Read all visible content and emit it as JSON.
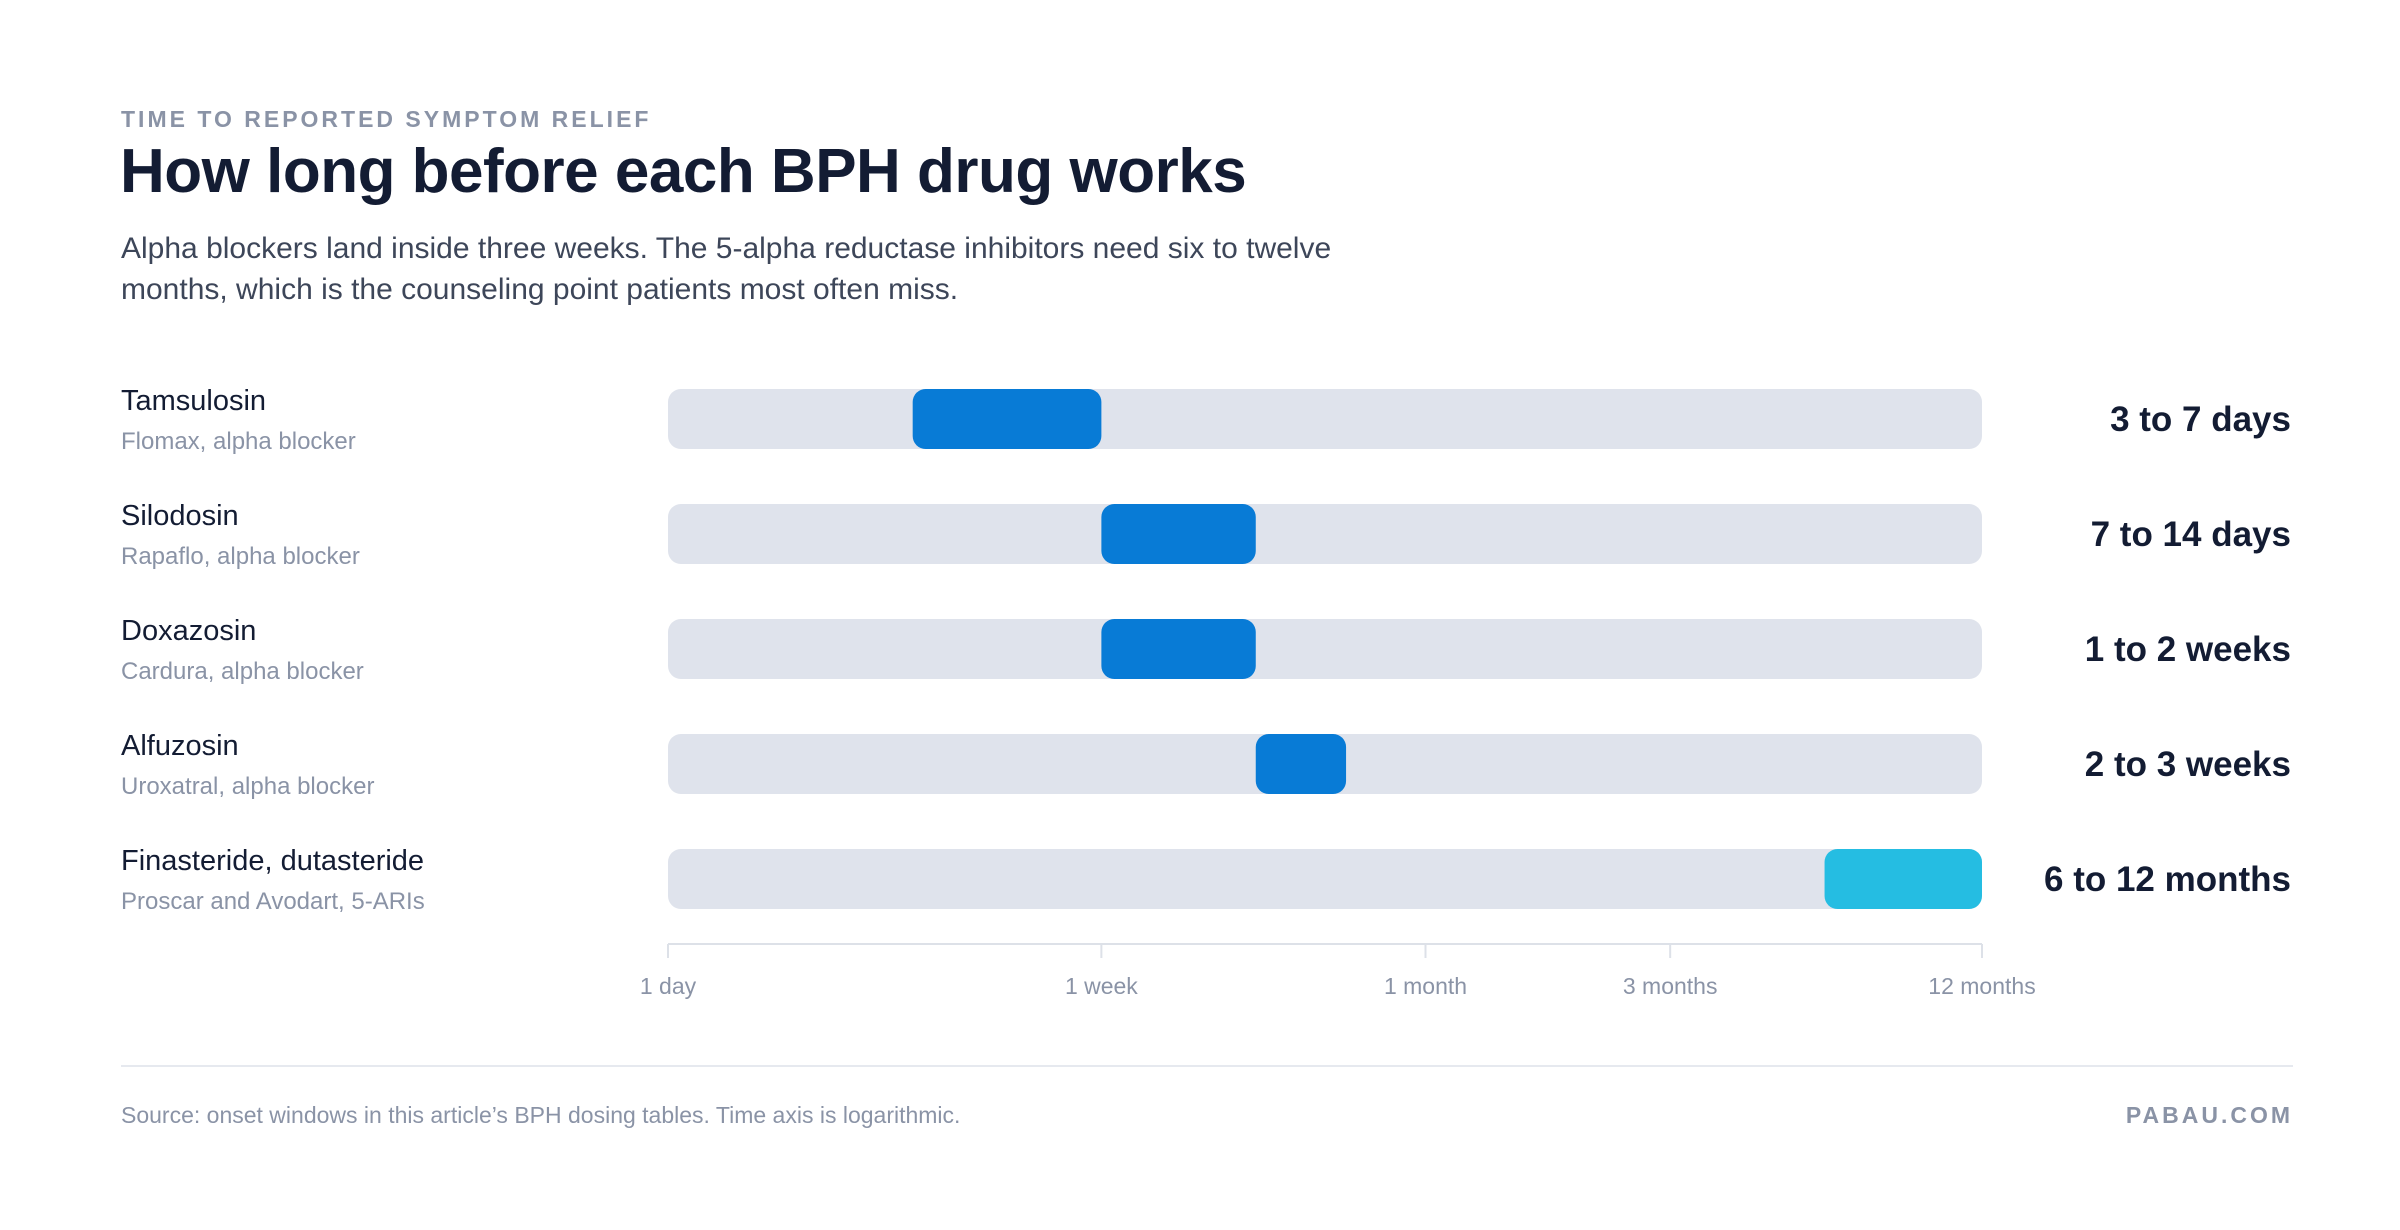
{
  "header": {
    "kicker": "TIME TO REPORTED SYMPTOM RELIEF",
    "title": "How long before each BPH drug works",
    "subtitle": "Alpha blockers land inside three weeks. The 5-alpha reductase inhibitors need six to twelve months, which is the counseling point patients most often miss."
  },
  "footer": {
    "source": "Source: onset windows in this article’s BPH dosing tables. Time axis is logarithmic.",
    "brand": "PABAU.COM"
  },
  "colors": {
    "track": "#dfe3ec",
    "alpha_blocker": "#087bd6",
    "five_ari": "#25bde2",
    "axis": "#dde1e8",
    "tick_label": "#8a93a6",
    "name": "#131c33",
    "detail": "#8a93a6"
  },
  "chart_data": {
    "type": "range-bar",
    "x_unit": "days",
    "x_scale": "log",
    "xlim": [
      1,
      365
    ],
    "x_ticks": [
      {
        "value": 1,
        "label": "1 day"
      },
      {
        "value": 7,
        "label": "1 week"
      },
      {
        "value": 30,
        "label": "1 month"
      },
      {
        "value": 90,
        "label": "3 months"
      },
      {
        "value": 365,
        "label": "12 months"
      }
    ],
    "rows": [
      {
        "name": "Tamsulosin",
        "detail": "Flomax, alpha blocker",
        "start": 3,
        "end": 7,
        "label": "3 to 7 days",
        "group": "alpha_blocker"
      },
      {
        "name": "Silodosin",
        "detail": "Rapaflo, alpha blocker",
        "start": 7,
        "end": 14,
        "label": "7 to 14 days",
        "group": "alpha_blocker"
      },
      {
        "name": "Doxazosin",
        "detail": "Cardura, alpha blocker",
        "start": 7,
        "end": 14,
        "label": "1 to 2 weeks",
        "group": "alpha_blocker"
      },
      {
        "name": "Alfuzosin",
        "detail": "Uroxatral, alpha blocker",
        "start": 14,
        "end": 21,
        "label": "2 to 3 weeks",
        "group": "alpha_blocker"
      },
      {
        "name": "Finasteride, dutasteride",
        "detail": "Proscar and Avodart, 5-ARIs",
        "start": 180,
        "end": 365,
        "label": "6 to 12 months",
        "group": "five_ari"
      }
    ]
  }
}
